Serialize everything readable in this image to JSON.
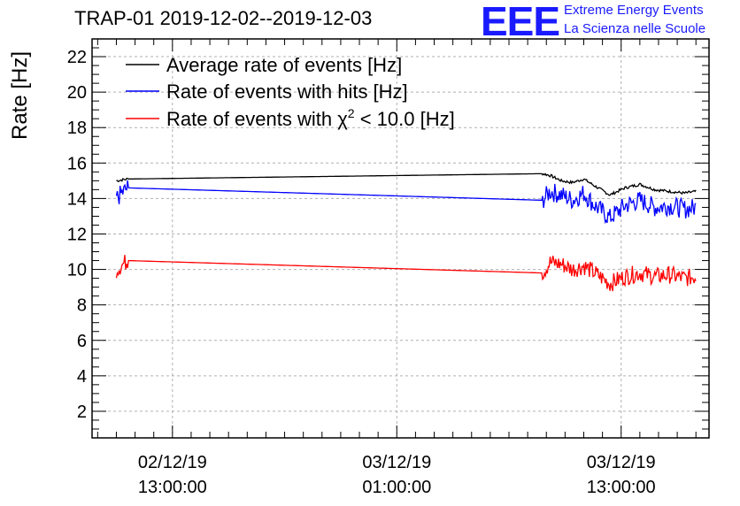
{
  "chart_data": {
    "type": "line",
    "title": "TRAP-01 2019-12-02--2019-12-03",
    "ylabel": "Rate [Hz]",
    "xlabel": "",
    "ylim": [
      0.5,
      23
    ],
    "xlim_hours": [
      -4.3,
      28.7
    ],
    "grid": true,
    "y_ticks": [
      2,
      4,
      6,
      8,
      10,
      12,
      14,
      16,
      18,
      20,
      22
    ],
    "x_ticks": [
      {
        "hour": 0,
        "date": "02/12/19",
        "time": "13:00:00"
      },
      {
        "hour": 12,
        "date": "03/12/19",
        "time": "01:00:00"
      },
      {
        "hour": 24,
        "date": "03/12/19",
        "time": "13:00:00"
      }
    ],
    "legend_position": "top-left",
    "series": [
      {
        "name": "Average rate of events [Hz]",
        "color": "#000000",
        "x": [
          -3,
          -2.4,
          19.8,
          20.2,
          20.8,
          21.4,
          22,
          22.6,
          23.4,
          24.2,
          25,
          25.8,
          26.6,
          27.4,
          28
        ],
        "y": [
          15.0,
          15.1,
          15.4,
          15.3,
          15.0,
          14.9,
          15.1,
          14.7,
          14.2,
          14.6,
          14.8,
          14.5,
          14.4,
          14.3,
          14.4
        ]
      },
      {
        "name": "Rate of events with hits [Hz]",
        "color": "#0000ff",
        "x": [
          -3,
          -2.4,
          19.8,
          20.2,
          20.8,
          21.4,
          22,
          22.6,
          23.4,
          24.2,
          25,
          25.8,
          26.6,
          27.4,
          28
        ],
        "y": [
          14.0,
          14.6,
          13.9,
          14.4,
          14.2,
          13.9,
          14.3,
          13.6,
          12.9,
          13.6,
          13.9,
          13.5,
          13.6,
          13.4,
          13.5
        ]
      },
      {
        "name": "Rate of events with χ² < 10.0 [Hz]",
        "color": "#ff0000",
        "x": [
          -3,
          -2.4,
          19.8,
          20.2,
          20.8,
          21.4,
          22,
          22.6,
          23.4,
          24.2,
          25,
          25.8,
          26.6,
          27.4,
          28
        ],
        "y": [
          10.0,
          10.5,
          9.8,
          10.4,
          10.3,
          10.0,
          10.2,
          9.8,
          9.2,
          9.6,
          9.8,
          9.6,
          9.7,
          9.5,
          9.6
        ]
      }
    ]
  },
  "legend": {
    "avg_label": "Average rate of events [Hz]",
    "hits_label": "Rate of events with hits [Hz]",
    "chi_prefix": "Rate of events with ",
    "chi_symbol": "χ",
    "chi_power": "2",
    "chi_suffix": " < 10.0 [Hz]"
  },
  "logo": {
    "mark": "EEE",
    "line1": "Extreme Energy Events",
    "line2": "La Scienza nelle Scuole"
  },
  "colors": {
    "logo_blue": "#1a1aff",
    "grid": "#b0b0b0"
  }
}
